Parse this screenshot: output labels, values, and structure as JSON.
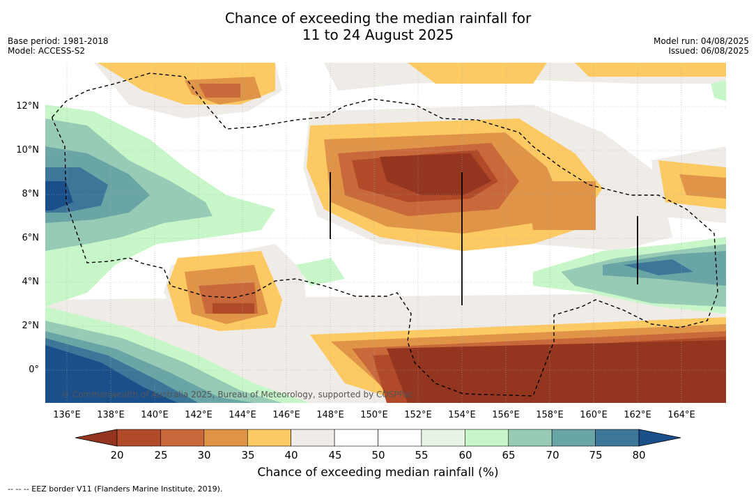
{
  "title_line1": "Chance of exceeding the median rainfall for",
  "title_line2": "11 to 24 August 2025",
  "base_period": "Base period: 1981-2018",
  "model": "Model: ACCESS-S2",
  "model_run": "Model run: 04/08/2025",
  "issued": "Issued: 06/08/2025",
  "copyright": "© Commonwealth of Australia 2025, Bureau of Meteorology, supported by COSPPac",
  "footnote": "--  --  -- EEZ border V11 (Flanders Marine Institute, 2019).",
  "colorbar_title": "Chance of exceeding median rainfall (%)",
  "y_ticks": [
    "12°N",
    "10°N",
    "8°N",
    "6°N",
    "4°N",
    "2°N",
    "0°"
  ],
  "x_ticks": [
    "136°E",
    "138°E",
    "140°E",
    "142°E",
    "144°E",
    "146°E",
    "148°E",
    "150°E",
    "152°E",
    "154°E",
    "156°E",
    "158°E",
    "160°E",
    "162°E",
    "164°E"
  ],
  "colorbar": {
    "ticks": [
      "20",
      "25",
      "30",
      "35",
      "40",
      "45",
      "50",
      "55",
      "60",
      "65",
      "70",
      "75",
      "80"
    ],
    "colors": [
      "#94351f",
      "#b04a28",
      "#c9683a",
      "#df9448",
      "#fcc962",
      "#efebe7",
      "#ffffff",
      "#ffffff",
      "#e8f4e8",
      "#c7f7c8",
      "#98cbb5",
      "#6aa5a5",
      "#3d7699",
      "#1b4f8a"
    ]
  }
}
